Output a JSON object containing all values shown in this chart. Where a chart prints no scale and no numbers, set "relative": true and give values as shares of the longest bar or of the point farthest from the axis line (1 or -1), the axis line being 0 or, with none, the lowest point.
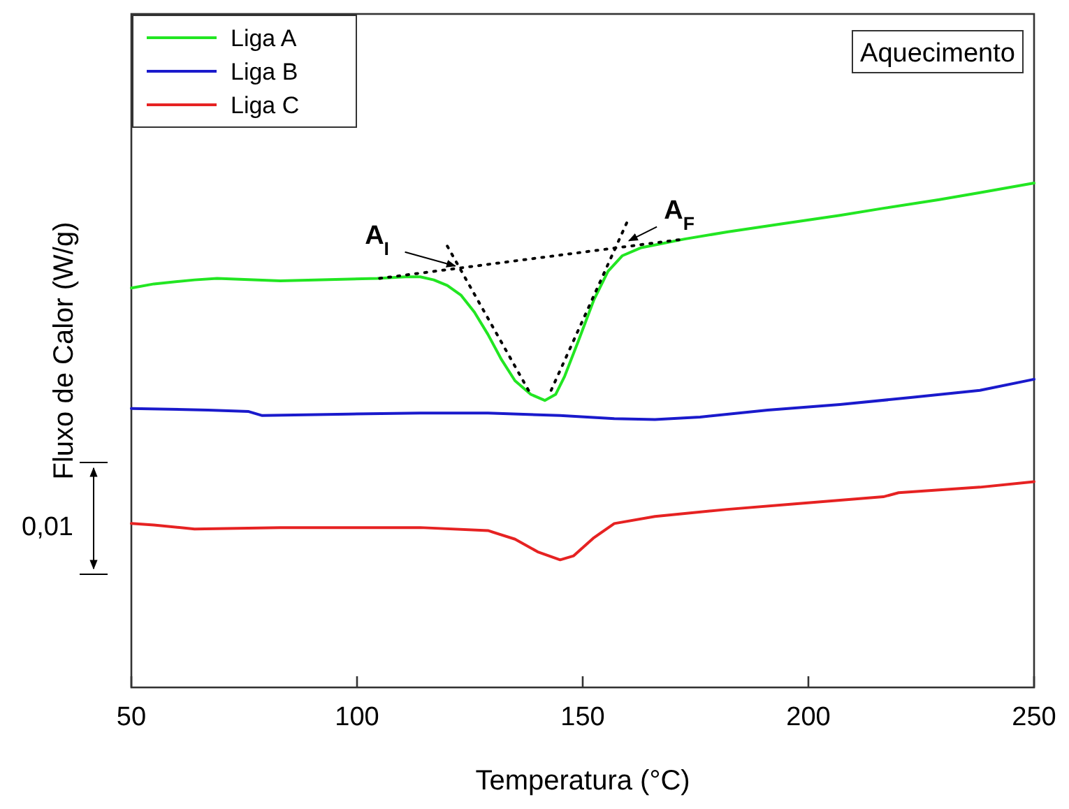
{
  "chart_data": {
    "type": "line",
    "xlabel": "Temperatura (°C)",
    "ylabel": "Fluxo de Calor (W/g)",
    "relative": true,
    "legend": "top left",
    "xlim": [
      50,
      250
    ],
    "xticks": [
      50,
      100,
      150,
      200,
      250
    ],
    "annotations": [
      "Aquecimento",
      "0,01",
      {
        "text": "A$_{I}$",
        "x": 123,
        "y": 0.83
      },
      {
        "text": "A$_{F}$",
        "x": 159,
        "y": 0.88
      }
    ],
    "series": [
      {
        "name": "Liga A",
        "color": "#22e622",
        "x": [
          50,
          55,
          64,
          69,
          83,
          104.5,
          110.7,
          114,
          117,
          120,
          123,
          126,
          129,
          132,
          135,
          138.5,
          141.6,
          144,
          146,
          149,
          152.5,
          155.6,
          158.8,
          163,
          172.6,
          182,
          194,
          207,
          216.6,
          229,
          238,
          250
        ],
        "values": [
          0.792,
          0.8,
          0.808,
          0.811,
          0.806,
          0.811,
          0.814,
          0.814,
          0.808,
          0.797,
          0.778,
          0.744,
          0.7,
          0.65,
          0.608,
          0.581,
          0.569,
          0.581,
          0.617,
          0.686,
          0.769,
          0.825,
          0.856,
          0.872,
          0.889,
          0.903,
          0.919,
          0.936,
          0.95,
          0.967,
          0.981,
          1
        ]
      },
      {
        "name": "Liga B",
        "color": "#1a1acc",
        "x": [
          50,
          67,
          76,
          79,
          98,
          114,
          129,
          145,
          157,
          166,
          176,
          191,
          207,
          223,
          238,
          250
        ],
        "values": [
          0.553,
          0.55,
          0.547,
          0.539,
          0.542,
          0.544,
          0.544,
          0.539,
          0.533,
          0.531,
          0.536,
          0.55,
          0.561,
          0.575,
          0.589,
          0.611
        ]
      },
      {
        "name": "Liga C",
        "color": "#e62222",
        "x": [
          50,
          55,
          64,
          83,
          114,
          129,
          135,
          140,
          145,
          148,
          152.5,
          157,
          166,
          182,
          197,
          216.6,
          220,
          238,
          250
        ],
        "values": [
          0.325,
          0.322,
          0.314,
          0.317,
          0.317,
          0.311,
          0.294,
          0.269,
          0.253,
          0.261,
          0.297,
          0.325,
          0.339,
          0.353,
          0.364,
          0.378,
          0.386,
          0.397,
          0.408
        ]
      },
      {
        "type": "line",
        "line_style": "dotted",
        "color": "#000000",
        "x": [
          105,
          172.6
        ],
        "values": [
          0.811,
          0.889
        ]
      },
      {
        "type": "line",
        "line_style": "dotted",
        "color": "#000000",
        "x": [
          120,
          138.5
        ],
        "values": [
          0.875,
          0.581
        ]
      },
      {
        "type": "line",
        "line_style": "dotted",
        "color": "#000000",
        "x": [
          143,
          159.8
        ],
        "values": [
          0.589,
          0.922
        ]
      }
    ]
  }
}
